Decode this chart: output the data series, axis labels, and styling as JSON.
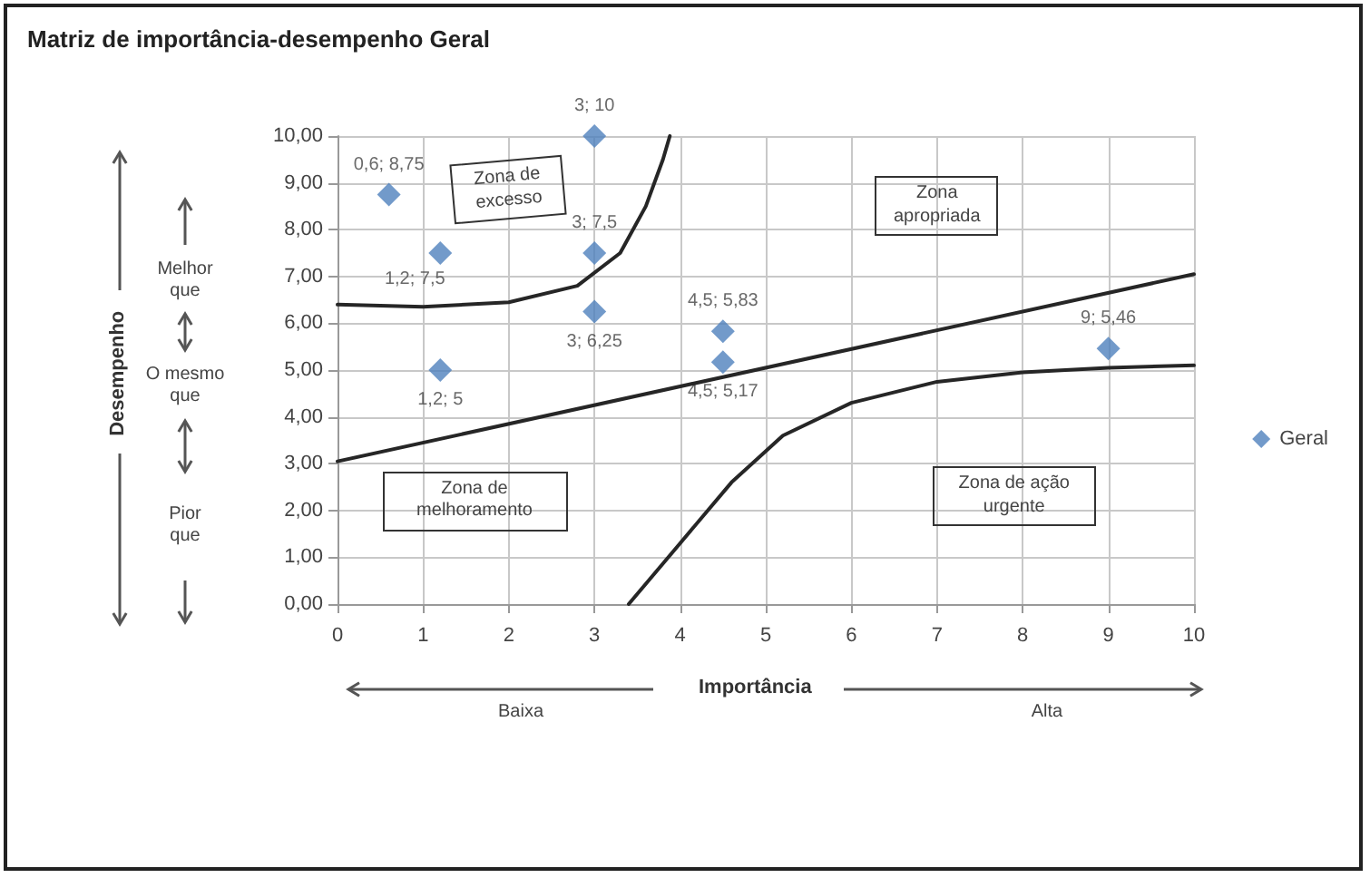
{
  "chart_data": {
    "type": "scatter",
    "title": "Matriz de importância-desempenho Geral",
    "xlabel": "Importância",
    "xlim": [
      0,
      10
    ],
    "ylim": [
      0,
      10
    ],
    "xticks": [
      0,
      1,
      2,
      3,
      4,
      5,
      6,
      7,
      8,
      9,
      10
    ],
    "yticks": [
      {
        "value": 0,
        "label": "0,00"
      },
      {
        "value": 1,
        "label": "1,00"
      },
      {
        "value": 2,
        "label": "2,00"
      },
      {
        "value": 3,
        "label": "3,00"
      },
      {
        "value": 4,
        "label": "4,00"
      },
      {
        "value": 5,
        "label": "5,00"
      },
      {
        "value": 6,
        "label": "6,00"
      },
      {
        "value": 7,
        "label": "7,00"
      },
      {
        "value": 8,
        "label": "8,00"
      },
      {
        "value": 9,
        "label": "9,00"
      },
      {
        "value": 10,
        "label": "10,00"
      }
    ],
    "grid": true,
    "legend": "right",
    "marker": "diamond",
    "series": [
      {
        "name": "Geral",
        "color": "#4f81bd",
        "x": [
          0.6,
          1.2,
          3,
          3,
          3,
          1.2,
          4.5,
          4.5,
          9
        ],
        "values": [
          8.75,
          7.5,
          10,
          7.5,
          6.25,
          5,
          5.83,
          5.17,
          5.46
        ],
        "value_labels": [
          "0,6; 8,75",
          "1,2; 7,5",
          "3; 10",
          "3; 7,5",
          "3; 6,25",
          "1,2; 5",
          "4,5; 5,83",
          "4,5; 5,17",
          "9; 5,46"
        ]
      },
      {
        "type": "line",
        "marker": "none",
        "color": "#262626",
        "x": [
          0,
          1,
          2,
          2.8,
          3.3,
          3.6,
          3.8,
          3.88
        ],
        "values": [
          6.4,
          6.35,
          6.45,
          6.8,
          7.5,
          8.5,
          9.5,
          10
        ]
      },
      {
        "type": "line",
        "marker": "none",
        "color": "#262626",
        "x": [
          0,
          10
        ],
        "values": [
          3.05,
          7.05
        ]
      },
      {
        "type": "line",
        "marker": "none",
        "color": "#262626",
        "x": [
          3.4,
          4,
          4.6,
          5.2,
          6,
          7,
          8,
          9,
          10
        ],
        "values": [
          0,
          1.3,
          2.6,
          3.6,
          4.3,
          4.75,
          4.95,
          5.05,
          5.1
        ]
      }
    ],
    "annotations": [
      "Zona de excesso",
      "Zona apropriada",
      "Zona de melhoramento",
      "Zona de ação urgente",
      "Melhor que",
      "O mesmo que",
      "Pior que",
      "Baixa",
      "Alta",
      "Desempenho"
    ]
  }
}
